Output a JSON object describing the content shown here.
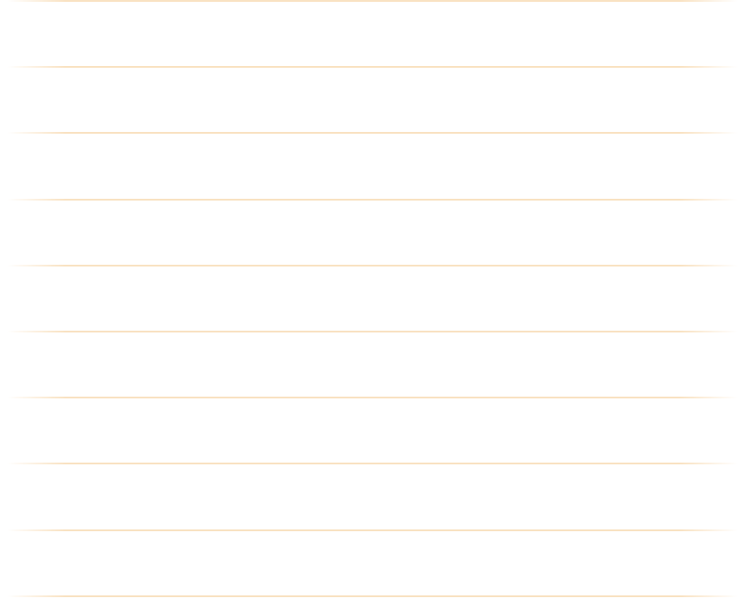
{
  "paper": {
    "background": "#ffffff",
    "rule_color": "#f9e2c2",
    "rule_count": 10
  }
}
